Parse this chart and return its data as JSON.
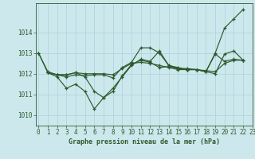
{
  "title": "Graphe pression niveau de la mer (hPa)",
  "background_color": "#cde8ed",
  "grid_color": "#b0d8df",
  "line_color": "#2d5a2d",
  "marker_color": "#2d5a2d",
  "xlim": [
    -0.3,
    23
  ],
  "ylim": [
    1009.5,
    1015.4
  ],
  "yticks": [
    1010,
    1011,
    1012,
    1013,
    1014
  ],
  "xticks": [
    0,
    1,
    2,
    3,
    4,
    5,
    6,
    7,
    8,
    9,
    10,
    11,
    12,
    13,
    14,
    15,
    16,
    17,
    18,
    19,
    20,
    21,
    22,
    23
  ],
  "xlabel_ticks": [
    "0",
    "1",
    "2",
    "3",
    "4",
    "5",
    "6",
    "7",
    "8",
    "9",
    "10",
    "11",
    "12",
    "13",
    "14",
    "15",
    "16",
    "17",
    "18",
    "19",
    "20",
    "21",
    "22",
    "23"
  ],
  "series": [
    {
      "x": [
        0,
        1,
        2,
        3,
        4,
        5,
        6,
        7,
        8,
        9,
        10,
        11,
        12,
        13,
        14,
        15,
        16,
        17,
        18,
        19,
        20,
        21,
        22
      ],
      "y": [
        1013.0,
        1012.05,
        1011.85,
        1011.3,
        1011.5,
        1011.15,
        1010.3,
        1010.85,
        1011.3,
        1011.85,
        1012.4,
        1012.7,
        1012.6,
        1013.1,
        1012.4,
        1012.3,
        1012.2,
        1012.2,
        1012.1,
        1013.0,
        1014.2,
        1014.65,
        1015.1
      ]
    },
    {
      "x": [
        0,
        1,
        2,
        3,
        4,
        5,
        6,
        7,
        8,
        9,
        10,
        11,
        12,
        13,
        14,
        15,
        16,
        17,
        18,
        19,
        20,
        21,
        22
      ],
      "y": [
        1013.0,
        1012.1,
        1011.95,
        1011.85,
        1011.95,
        1011.9,
        1011.95,
        1011.95,
        1011.8,
        1012.3,
        1012.55,
        1013.25,
        1013.25,
        1013.0,
        1012.4,
        1012.25,
        1012.25,
        1012.2,
        1012.1,
        1012.0,
        1012.95,
        1013.1,
        1012.65
      ]
    },
    {
      "x": [
        1,
        2,
        3,
        4,
        5,
        6,
        7,
        8,
        9,
        10,
        11,
        12,
        13,
        14,
        15,
        16,
        17,
        18,
        19,
        20,
        21,
        22
      ],
      "y": [
        1012.05,
        1011.95,
        1011.95,
        1012.05,
        1011.85,
        1011.15,
        1010.85,
        1011.15,
        1011.9,
        1012.45,
        1012.65,
        1012.55,
        1012.3,
        1012.35,
        1012.25,
        1012.2,
        1012.2,
        1012.1,
        1012.95,
        1012.6,
        1012.7,
        1012.65
      ]
    },
    {
      "x": [
        1,
        2,
        3,
        4,
        5,
        6,
        7,
        8,
        9,
        10,
        11,
        12,
        13,
        14,
        15,
        16,
        17,
        18,
        19,
        20,
        21,
        22
      ],
      "y": [
        1012.05,
        1011.95,
        1011.95,
        1012.05,
        1012.0,
        1012.0,
        1012.0,
        1011.95,
        1012.25,
        1012.5,
        1012.55,
        1012.5,
        1012.4,
        1012.3,
        1012.2,
        1012.2,
        1012.2,
        1012.15,
        1012.1,
        1012.5,
        1012.65,
        1012.65
      ]
    }
  ]
}
